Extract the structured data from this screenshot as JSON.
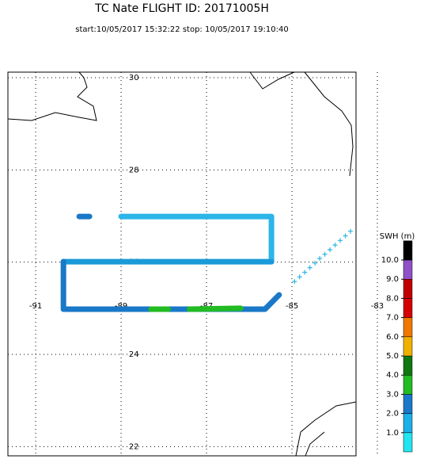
{
  "chart_data": {
    "type": "track",
    "title": "TC Nate  FLIGHT ID: 20171005H",
    "subtitle": "start:10/05/2017 15:32:22  stop: 10/05/2017 19:10:40",
    "xlim": [
      -91.65,
      -83.5
    ],
    "ylim": [
      21.8,
      30.12
    ],
    "xticks": [
      -91,
      -89,
      -87,
      -85,
      -83
    ],
    "yticks": [
      22,
      24,
      26,
      28,
      30
    ],
    "grid": true,
    "track": [
      {
        "color": "#1a78c8",
        "lon": [
          -89.98,
          -89.74
        ],
        "lat": [
          26.99,
          26.99
        ]
      },
      {
        "color": "#2bb5e8",
        "lon": [
          -89.0,
          -85.48,
          -85.48
        ],
        "lat": [
          26.99,
          26.99,
          26.01
        ]
      },
      {
        "color": "#1a9ad8",
        "lon": [
          -85.48,
          -90.35
        ],
        "lat": [
          26.01,
          26.01
        ]
      },
      {
        "color": "#1a78c8",
        "lon": [
          -90.35,
          -90.35,
          -85.63,
          -85.3
        ],
        "lat": [
          26.01,
          24.98,
          24.98,
          25.29
        ]
      },
      {
        "color": "#22bb22",
        "lon": [
          -88.3,
          -87.9
        ],
        "lat": [
          24.98,
          24.98
        ]
      },
      {
        "color": "#22bb22",
        "lon": [
          -87.4,
          -86.2
        ],
        "lat": [
          24.98,
          25.0
        ]
      }
    ],
    "crosses": {
      "color": "#2bb5e8",
      "lon": [
        -84.94,
        -84.82,
        -84.7,
        -84.58,
        -84.46,
        -84.35,
        -84.23,
        -84.11,
        -83.99,
        -83.87,
        -83.75,
        -83.63
      ],
      "lat": [
        25.58,
        25.68,
        25.78,
        25.88,
        25.98,
        26.08,
        26.17,
        26.27,
        26.37,
        26.47,
        26.57,
        26.67
      ]
    },
    "colorbar": {
      "label": "SWH (m)",
      "ticks": [
        {
          "value": 1,
          "label": "1.0"
        },
        {
          "value": 2,
          "label": "2.0"
        },
        {
          "value": 3,
          "label": "3.0"
        },
        {
          "value": 4,
          "label": "4.0"
        },
        {
          "value": 5,
          "label": "5.0"
        },
        {
          "value": 6,
          "label": "6.0"
        },
        {
          "value": 7,
          "label": "7.0"
        },
        {
          "value": 8,
          "label": "8.0"
        },
        {
          "value": 9,
          "label": "9.0"
        },
        {
          "value": 10,
          "label": "10.0"
        }
      ],
      "colors": [
        "#22e5f0",
        "#1ab0e8",
        "#1a78c8",
        "#22bb22",
        "#117711",
        "#f0b000",
        "#f07800",
        "#d40000",
        "#c00000",
        "#9050c8",
        "#000000"
      ]
    }
  }
}
